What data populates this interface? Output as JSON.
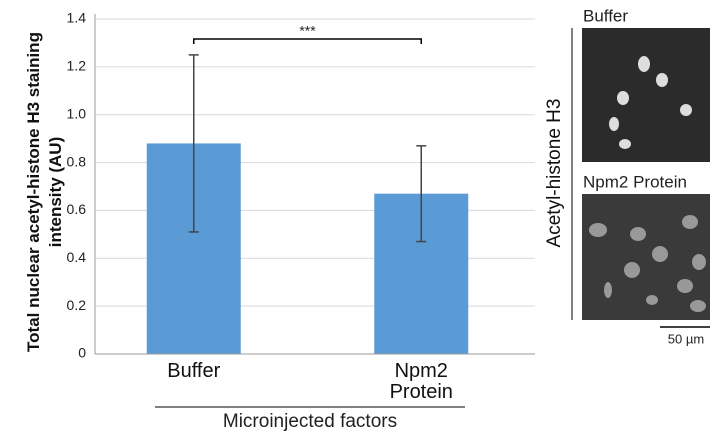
{
  "chart_data": {
    "type": "bar",
    "y_label": "Total nuclear acetyl-histone H3 staining intensity (AU)",
    "x_label": "Microinjected factors",
    "annotation": "***",
    "categories": [
      "Buffer",
      "Npm2 Protein"
    ],
    "values": [
      0.88,
      0.67
    ],
    "errors": [
      0.37,
      0.2
    ],
    "color": "#5b9bd5",
    "ylim": [
      0,
      1.4
    ],
    "yticks": [
      0,
      0.2,
      0.4,
      0.6,
      0.8,
      {
        "value": 1,
        "label": "1.0"
      },
      1.2,
      1.4
    ],
    "grid": true
  },
  "images": {
    "side_label": "Acetyl-histone H3",
    "panels": [
      {
        "label": "Buffer"
      },
      {
        "label": "Npm2 Protein"
      }
    ],
    "scale_bar": "50 µm"
  }
}
